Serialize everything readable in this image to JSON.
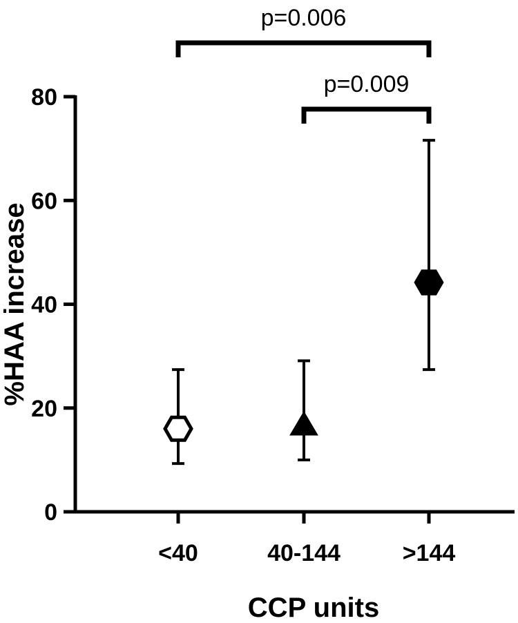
{
  "chart_data": {
    "type": "scatter",
    "x_label": "CCP units",
    "y_label": "%HAA increase",
    "ylim": [
      0,
      80
    ],
    "y_ticks": [
      0,
      20,
      40,
      60,
      80
    ],
    "y_tick_labels": [
      "0",
      "20",
      "40",
      "60",
      "80"
    ],
    "categories": [
      "<40",
      "40-144",
      ">144"
    ],
    "points": [
      {
        "category": "<40",
        "value": 16,
        "lower": 9.3,
        "upper": 27.4,
        "marker": "hexagon-open"
      },
      {
        "category": "40-144",
        "value": 16.5,
        "lower": 10,
        "upper": 29.1,
        "marker": "triangle-filled"
      },
      {
        "category": ">144",
        "value": 44.2,
        "lower": 27.4,
        "upper": 71.6,
        "marker": "hexagon-filled"
      }
    ],
    "annotations": [
      {
        "text": "p=0.006",
        "from": "<40",
        "to": ">144"
      },
      {
        "text": "p=0.009",
        "from": "40-144",
        "to": ">144"
      }
    ],
    "grid": false,
    "legend": "none",
    "color": "#000000"
  }
}
